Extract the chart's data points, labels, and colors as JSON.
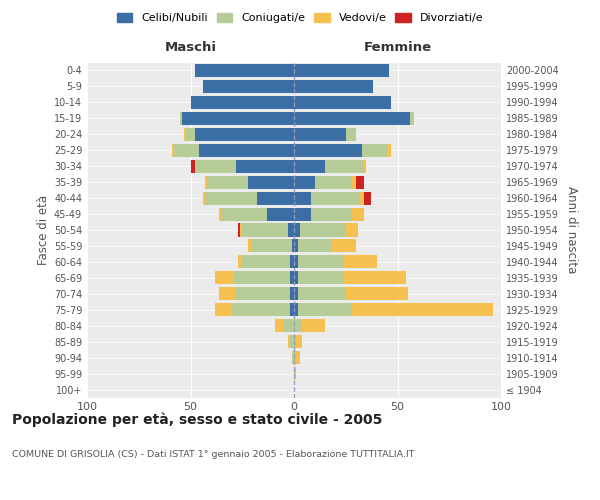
{
  "age_groups": [
    "100+",
    "95-99",
    "90-94",
    "85-89",
    "80-84",
    "75-79",
    "70-74",
    "65-69",
    "60-64",
    "55-59",
    "50-54",
    "45-49",
    "40-44",
    "35-39",
    "30-34",
    "25-29",
    "20-24",
    "15-19",
    "10-14",
    "5-9",
    "0-4"
  ],
  "birth_years": [
    "≤ 1904",
    "1905-1909",
    "1910-1914",
    "1915-1919",
    "1920-1924",
    "1925-1929",
    "1930-1934",
    "1935-1939",
    "1940-1944",
    "1945-1949",
    "1950-1954",
    "1955-1959",
    "1960-1964",
    "1965-1969",
    "1970-1974",
    "1975-1979",
    "1980-1984",
    "1985-1989",
    "1990-1994",
    "1995-1999",
    "2000-2004"
  ],
  "maschi": {
    "celibi": [
      0,
      0,
      0,
      0,
      0,
      2,
      2,
      2,
      2,
      1,
      3,
      13,
      18,
      22,
      28,
      46,
      48,
      54,
      50,
      44,
      48
    ],
    "coniugati": [
      0,
      0,
      1,
      2,
      5,
      28,
      26,
      27,
      23,
      20,
      22,
      22,
      25,
      20,
      20,
      12,
      4,
      1,
      0,
      0,
      0
    ],
    "vedovi": [
      0,
      0,
      0,
      1,
      4,
      8,
      8,
      9,
      2,
      1,
      1,
      1,
      1,
      1,
      0,
      1,
      1,
      0,
      0,
      0,
      0
    ],
    "divorziati": [
      0,
      0,
      0,
      0,
      0,
      0,
      0,
      0,
      0,
      0,
      1,
      0,
      0,
      0,
      2,
      0,
      0,
      0,
      0,
      0,
      0
    ]
  },
  "femmine": {
    "nubili": [
      0,
      0,
      0,
      0,
      0,
      2,
      2,
      2,
      2,
      2,
      3,
      8,
      8,
      10,
      15,
      33,
      25,
      56,
      47,
      38,
      46
    ],
    "coniugate": [
      0,
      0,
      1,
      1,
      4,
      26,
      23,
      22,
      22,
      16,
      22,
      20,
      24,
      18,
      19,
      12,
      5,
      2,
      0,
      0,
      0
    ],
    "vedove": [
      0,
      1,
      2,
      3,
      11,
      68,
      30,
      30,
      16,
      12,
      6,
      6,
      2,
      2,
      1,
      2,
      0,
      0,
      0,
      0,
      0
    ],
    "divorziate": [
      0,
      0,
      0,
      0,
      0,
      0,
      0,
      0,
      0,
      0,
      0,
      0,
      3,
      4,
      0,
      0,
      0,
      0,
      0,
      0,
      0
    ]
  },
  "colors": {
    "celibi_nubili": "#3b6ea5",
    "coniugati": "#b5cc96",
    "vedovi": "#f5c050",
    "divorziati": "#cc2222"
  },
  "xlim": 100,
  "title": "Popolazione per età, sesso e stato civile - 2005",
  "subtitle": "COMUNE DI GRISOLIA (CS) - Dati ISTAT 1° gennaio 2005 - Elaborazione TUTTITALIA.IT",
  "ylabel_left": "Fasce di età",
  "ylabel_right": "Anni di nascita"
}
